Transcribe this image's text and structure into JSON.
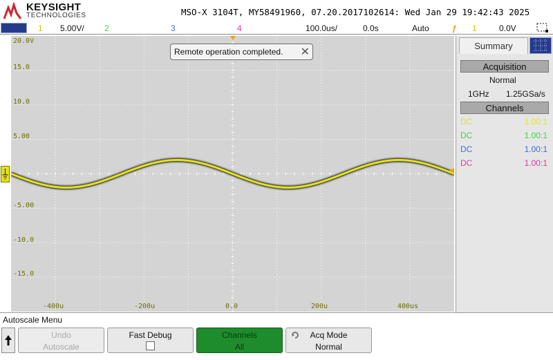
{
  "header": {
    "brand": "KEYSIGHT",
    "brand_sub": "TECHNOLOGIES",
    "info": "MSO-X 3104T, MY58491960, 07.20.2017102614: Wed Jan 29 19:42:43 2025"
  },
  "status_bar": {
    "ch1_label": "1",
    "ch1_scale": "5.00V/",
    "ch2_label": "2",
    "ch3_label": "3",
    "ch4_label": "4",
    "timebase": "100.0us/",
    "delay": "0.0s",
    "trigger_mode": "Auto",
    "trigger_source": "1",
    "trigger_level": "0.0V"
  },
  "notification": {
    "text": "Remote operation completed.",
    "close_symbol": "✕"
  },
  "scope": {
    "y_labels": [
      "20.0V",
      "15.0",
      "10.0",
      "5.00",
      "-5.00",
      "-10.0",
      "-15.0"
    ],
    "x_labels": [
      "-400u",
      "-200u",
      "0.0",
      "200u",
      "400us"
    ],
    "ch1_marker": "1"
  },
  "waveform": {
    "channel": "1",
    "color": "#e3e31a",
    "amplitude_v": 2.0,
    "period_us": 500,
    "offset_v": 0.0
  },
  "right_panel": {
    "tab_label": "Summary",
    "acquisition_header": "Acquisition",
    "acq_mode": "Normal",
    "bandwidth": "1GHz",
    "sample_rate": "1.25GSa/s",
    "channels_header": "Channels",
    "channel_rows": [
      {
        "coupling": "DC",
        "probe": "1.00:1",
        "color": "#e3e31a"
      },
      {
        "coupling": "DC",
        "probe": "1.00:1",
        "color": "#3ad63a"
      },
      {
        "coupling": "DC",
        "probe": "1.00:1",
        "color": "#3e6be0"
      },
      {
        "coupling": "DC",
        "probe": "1.00:1",
        "color": "#e03aa0"
      }
    ]
  },
  "bottom": {
    "menu_title": "Autoscale Menu",
    "back_symbol": "🠕",
    "softkeys": {
      "undo": {
        "line1": "Undo",
        "line2": "Autoscale"
      },
      "debug": {
        "line1": "Fast Debug"
      },
      "channels": {
        "line1": "Channels",
        "line2": "All"
      },
      "acq": {
        "line1": "Acq Mode",
        "line2": "Normal"
      }
    }
  },
  "colors": {
    "ch1": "#e3e31a",
    "ch2": "#3ad63a",
    "ch3": "#3e6be0",
    "ch4": "#e03aa0",
    "trigger": "#f5a000",
    "grid_label": "#6e6e00"
  }
}
